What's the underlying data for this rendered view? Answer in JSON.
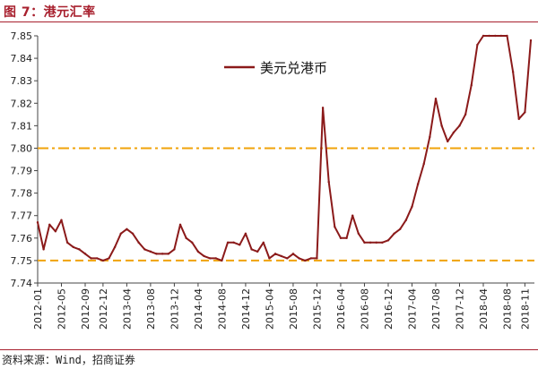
{
  "header": {
    "title": "图 7：港元汇率"
  },
  "footer": {
    "source": "资料来源：Wind，招商证券"
  },
  "colors": {
    "series": "#8b1a1a",
    "reference": "#f0a30a",
    "title": "#a8202e"
  },
  "chart_data": {
    "type": "line",
    "title": "",
    "xlabel": "",
    "ylabel": "",
    "ylim": [
      7.74,
      7.85
    ],
    "yticks": [
      "7.74",
      "7.75",
      "7.76",
      "7.77",
      "7.78",
      "7.79",
      "7.80",
      "7.81",
      "7.82",
      "7.83",
      "7.84",
      "7.85"
    ],
    "xticks": [
      "2012-01",
      "2012-05",
      "2012-09",
      "2012-12",
      "2013-04",
      "2013-08",
      "2013-12",
      "2014-04",
      "2014-08",
      "2014-12",
      "2015-04",
      "2015-08",
      "2015-12",
      "2016-04",
      "2016-08",
      "2016-12",
      "2017-04",
      "2017-08",
      "2017-12",
      "2018-04",
      "2018-08",
      "2018-11"
    ],
    "reference_lines": [
      {
        "y": 7.8,
        "style": "dash-dot"
      },
      {
        "y": 7.75,
        "style": "dash"
      }
    ],
    "legend": {
      "position": "top-center"
    },
    "series": [
      {
        "name": "美元兑港币",
        "x": [
          "2012-01",
          "2012-02",
          "2012-03",
          "2012-04",
          "2012-05",
          "2012-06",
          "2012-07",
          "2012-08",
          "2012-09",
          "2012-10",
          "2012-11",
          "2012-12",
          "2013-01",
          "2013-02",
          "2013-03",
          "2013-04",
          "2013-05",
          "2013-06",
          "2013-07",
          "2013-08",
          "2013-09",
          "2013-10",
          "2013-11",
          "2013-12",
          "2014-01",
          "2014-02",
          "2014-03",
          "2014-04",
          "2014-05",
          "2014-06",
          "2014-07",
          "2014-08",
          "2014-09",
          "2014-10",
          "2014-11",
          "2014-12",
          "2015-01",
          "2015-02",
          "2015-03",
          "2015-04",
          "2015-05",
          "2015-06",
          "2015-07",
          "2015-08",
          "2015-09",
          "2015-10",
          "2015-11",
          "2015-12",
          "2016-01",
          "2016-02",
          "2016-03",
          "2016-04",
          "2016-05",
          "2016-06",
          "2016-07",
          "2016-08",
          "2016-09",
          "2016-10",
          "2016-11",
          "2016-12",
          "2017-01",
          "2017-02",
          "2017-03",
          "2017-04",
          "2017-05",
          "2017-06",
          "2017-07",
          "2017-08",
          "2017-09",
          "2017-10",
          "2017-11",
          "2017-12",
          "2018-01",
          "2018-02",
          "2018-03",
          "2018-04",
          "2018-05",
          "2018-06",
          "2018-07",
          "2018-08",
          "2018-09",
          "2018-10",
          "2018-11",
          "2018-12"
        ],
        "values": [
          7.767,
          7.755,
          7.766,
          7.763,
          7.768,
          7.758,
          7.756,
          7.755,
          7.753,
          7.751,
          7.751,
          7.75,
          7.751,
          7.756,
          7.762,
          7.764,
          7.762,
          7.758,
          7.755,
          7.754,
          7.753,
          7.753,
          7.753,
          7.755,
          7.766,
          7.76,
          7.758,
          7.754,
          7.752,
          7.751,
          7.751,
          7.75,
          7.758,
          7.758,
          7.757,
          7.762,
          7.755,
          7.754,
          7.758,
          7.751,
          7.753,
          7.752,
          7.751,
          7.753,
          7.751,
          7.75,
          7.751,
          7.751,
          7.818,
          7.785,
          7.765,
          7.76,
          7.76,
          7.77,
          7.762,
          7.758,
          7.758,
          7.758,
          7.758,
          7.759,
          7.762,
          7.764,
          7.768,
          7.774,
          7.784,
          7.793,
          7.805,
          7.822,
          7.81,
          7.803,
          7.807,
          7.81,
          7.815,
          7.828,
          7.846,
          7.85,
          7.85,
          7.85,
          7.85,
          7.85,
          7.834,
          7.813,
          7.816,
          7.848
        ]
      }
    ]
  }
}
